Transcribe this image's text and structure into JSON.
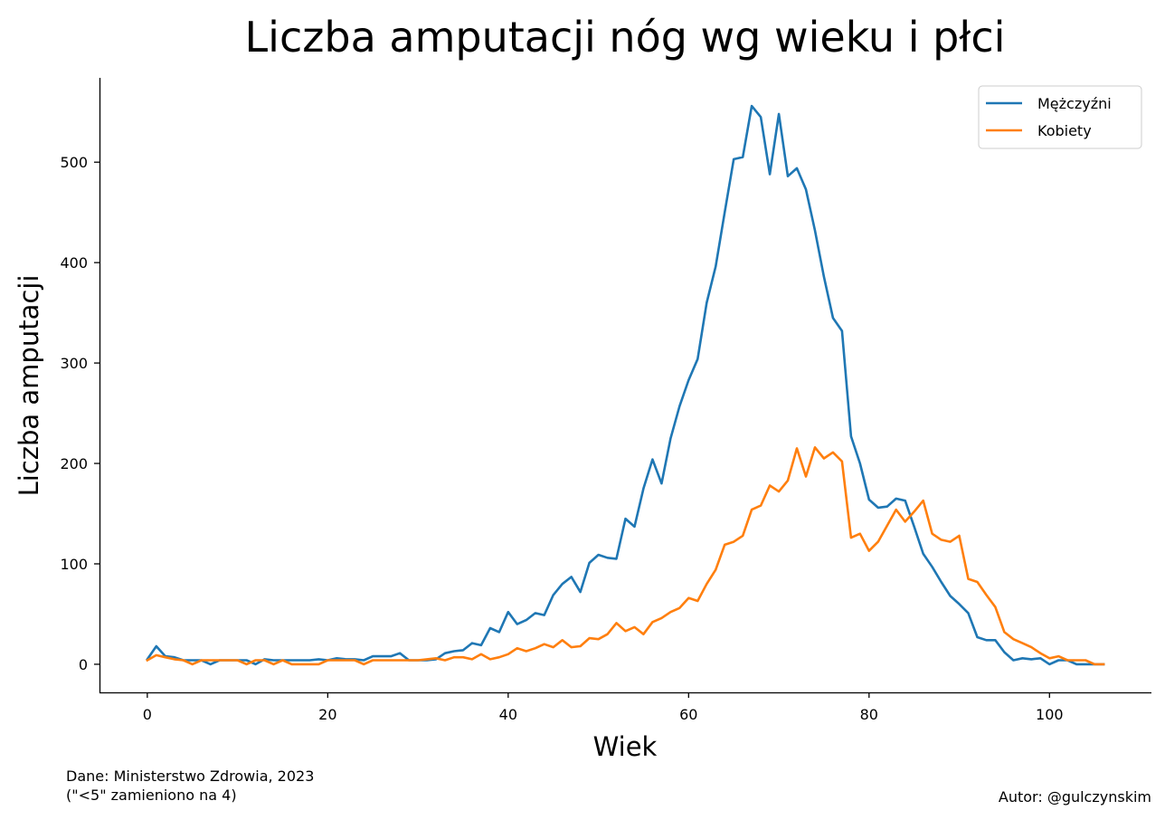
{
  "chart_data": {
    "type": "line",
    "title": "Liczba amputacji nóg wg wieku i płci",
    "xlabel": "Wiek",
    "ylabel": "Liczba amputacji",
    "xlim": [
      -5.3,
      111.3
    ],
    "ylim": [
      -28,
      584
    ],
    "xticks": [
      0,
      20,
      40,
      60,
      80,
      100
    ],
    "yticks": [
      0,
      100,
      200,
      300,
      400,
      500
    ],
    "grid": false,
    "legend_position": "top-right",
    "x": [
      0,
      1,
      2,
      3,
      4,
      5,
      6,
      7,
      8,
      9,
      10,
      11,
      12,
      13,
      14,
      15,
      16,
      17,
      18,
      19,
      20,
      21,
      22,
      23,
      24,
      25,
      26,
      27,
      28,
      29,
      30,
      31,
      32,
      33,
      34,
      35,
      36,
      37,
      38,
      39,
      40,
      41,
      42,
      43,
      44,
      45,
      46,
      47,
      48,
      49,
      50,
      51,
      52,
      53,
      54,
      55,
      56,
      57,
      58,
      59,
      60,
      61,
      62,
      63,
      64,
      65,
      66,
      67,
      68,
      69,
      70,
      71,
      72,
      73,
      74,
      75,
      76,
      77,
      78,
      79,
      80,
      81,
      82,
      83,
      84,
      85,
      86,
      87,
      88,
      89,
      90,
      91,
      92,
      93,
      94,
      95,
      96,
      97,
      98,
      99,
      100,
      101,
      102,
      103,
      104,
      105,
      106
    ],
    "series": [
      {
        "name": "Mężczyźni",
        "color": "#1f77b4",
        "values": [
          5,
          18,
          8,
          7,
          4,
          4,
          4,
          0,
          4,
          4,
          4,
          4,
          0,
          5,
          4,
          4,
          4,
          4,
          4,
          5,
          4,
          6,
          5,
          5,
          4,
          8,
          8,
          8,
          11,
          4,
          4,
          4,
          5,
          11,
          13,
          14,
          21,
          19,
          36,
          32,
          52,
          40,
          44,
          51,
          49,
          69,
          80,
          87,
          72,
          101,
          109,
          106,
          105,
          145,
          137,
          175,
          204,
          180,
          225,
          257,
          283,
          304,
          360,
          396,
          450,
          503,
          505,
          556,
          545,
          488,
          548,
          486,
          494,
          473,
          432,
          386,
          345,
          332,
          227,
          200,
          164,
          156,
          157,
          165,
          163,
          137,
          110,
          97,
          82,
          68,
          60,
          51,
          27,
          24,
          24,
          12,
          4,
          6,
          5,
          6,
          0,
          4,
          4,
          0,
          0,
          0,
          0
        ]
      },
      {
        "name": "Kobiety",
        "color": "#ff7f0e",
        "values": [
          4,
          9,
          7,
          5,
          4,
          0,
          4,
          4,
          4,
          4,
          4,
          0,
          4,
          4,
          0,
          4,
          0,
          0,
          0,
          0,
          4,
          4,
          4,
          4,
          0,
          4,
          4,
          4,
          4,
          4,
          4,
          5,
          6,
          4,
          7,
          7,
          5,
          10,
          5,
          7,
          10,
          16,
          13,
          16,
          20,
          17,
          24,
          17,
          18,
          26,
          25,
          30,
          41,
          33,
          37,
          30,
          42,
          46,
          52,
          56,
          66,
          63,
          80,
          94,
          119,
          122,
          128,
          154,
          158,
          178,
          172,
          183,
          215,
          187,
          216,
          205,
          211,
          202,
          126,
          130,
          113,
          122,
          138,
          154,
          142,
          152,
          163,
          130,
          124,
          122,
          128,
          85,
          82,
          69,
          57,
          32,
          25,
          21,
          17,
          11,
          6,
          8,
          4,
          4,
          4,
          0,
          0
        ]
      }
    ]
  },
  "footnotes": {
    "source_line1": "Dane: Ministerstwo Zdrowia, 2023",
    "source_line2": "(\"<5\" zamieniono na 4)",
    "author": "Autor: @gulczynskim"
  }
}
